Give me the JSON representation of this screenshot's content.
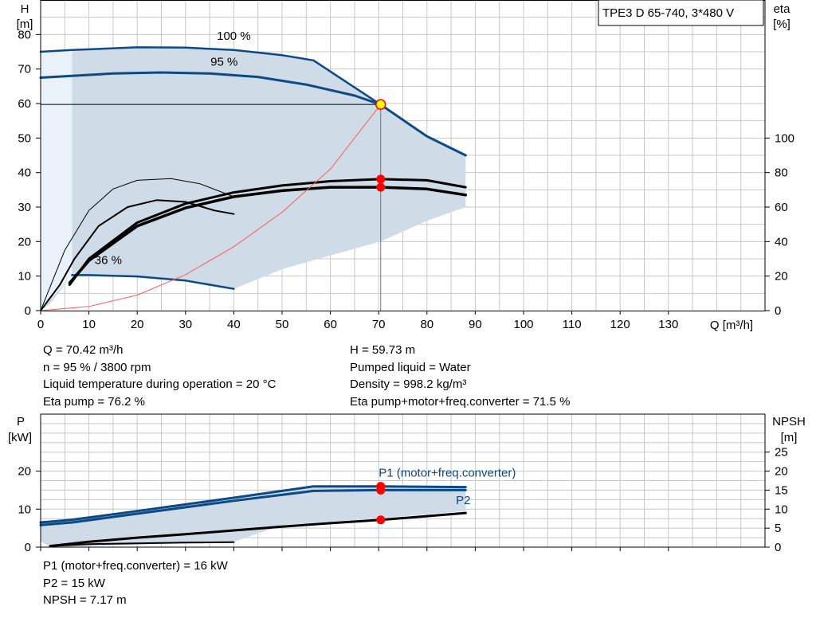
{
  "header": {
    "title": "TPE3 D 65-740, 3*480 V"
  },
  "chart_data": [
    {
      "type": "line",
      "name": "head-and-efficiency",
      "x_axis": {
        "label": "Q [m³/h]",
        "range": [
          0,
          150
        ],
        "ticks": [
          0,
          10,
          20,
          30,
          40,
          50,
          60,
          70,
          80,
          90,
          100,
          110,
          120,
          130
        ]
      },
      "y_left": {
        "label_top": "H",
        "label_unit": "[m]",
        "range": [
          0,
          90
        ],
        "ticks": [
          0,
          10,
          20,
          30,
          40,
          50,
          60,
          70,
          80
        ]
      },
      "y_right": {
        "label_top": "eta",
        "label_unit": "[%]",
        "range": [
          0,
          180
        ],
        "ticks": [
          0,
          20,
          40,
          60,
          80,
          100
        ]
      },
      "grid": true,
      "curve_labels": [
        {
          "text": "100 %",
          "at": [
            40,
            78.5
          ]
        },
        {
          "text": "95 %",
          "at": [
            38,
            71
          ]
        },
        {
          "text": "36 %",
          "at": [
            14,
            13.5
          ]
        }
      ],
      "series": [
        {
          "name": "100 %",
          "axis": "left",
          "values": [
            [
              0,
              75
            ],
            [
              6.5,
              75.5
            ],
            [
              20,
              76.3
            ],
            [
              30,
              76.2
            ],
            [
              40,
              75.5
            ],
            [
              50,
              74
            ],
            [
              56.5,
              72.5
            ],
            [
              70.4,
              59.7
            ]
          ]
        },
        {
          "name": "95 %",
          "axis": "left",
          "values": [
            [
              0,
              67.5
            ],
            [
              6.5,
              68
            ],
            [
              15,
              68.7
            ],
            [
              25,
              69
            ],
            [
              35,
              68.7
            ],
            [
              45,
              67.7
            ],
            [
              55,
              65.5
            ],
            [
              65,
              62.3
            ],
            [
              70.4,
              59.7
            ]
          ]
        },
        {
          "name": "36 %",
          "axis": "left",
          "values": [
            [
              6.5,
              10.3
            ],
            [
              10,
              10.3
            ],
            [
              20,
              9.9
            ],
            [
              30,
              8.7
            ],
            [
              40,
              6.3
            ]
          ]
        },
        {
          "axis": "left",
          "values": [
            [
              70.4,
              59.7
            ],
            [
              80,
              50.5
            ],
            [
              88,
              45
            ]
          ]
        },
        {
          "axis": "right",
          "values": [
            [
              6,
              15
            ],
            [
              10,
              30
            ],
            [
              20,
              51
            ],
            [
              30,
              62
            ],
            [
              40,
              68.5
            ],
            [
              50,
              72.5
            ],
            [
              60,
              75
            ],
            [
              70.4,
              76.2
            ],
            [
              80,
              75.5
            ],
            [
              88,
              71.5
            ]
          ]
        },
        {
          "axis": "right",
          "values": [
            [
              6,
              16
            ],
            [
              10,
              29
            ],
            [
              20,
              49
            ],
            [
              30,
              59.5
            ],
            [
              40,
              66
            ],
            [
              50,
              69.5
            ],
            [
              60,
              71.5
            ],
            [
              70.4,
              71.5
            ],
            [
              80,
              70.5
            ],
            [
              88,
              67
            ]
          ]
        },
        {
          "axis": "right",
          "values": [
            [
              0,
              0
            ],
            [
              5,
              35
            ],
            [
              10,
              58
            ],
            [
              15,
              70.5
            ],
            [
              20,
              75.5
            ],
            [
              27,
              76.5
            ],
            [
              33,
              73.5
            ],
            [
              40,
              66
            ]
          ]
        },
        {
          "axis": "right",
          "values": [
            [
              0,
              0
            ],
            [
              4,
              15
            ],
            [
              7,
              30
            ],
            [
              12,
              49
            ],
            [
              18,
              60
            ],
            [
              24,
              64
            ],
            [
              30,
              63
            ],
            [
              36,
              58
            ],
            [
              40,
              56
            ]
          ]
        },
        {
          "axis": "left",
          "values": [
            [
              0,
              0
            ],
            [
              10,
              1.2
            ],
            [
              20,
              4.5
            ],
            [
              30,
              10.4
            ],
            [
              40,
              18.5
            ],
            [
              50,
              28.5
            ],
            [
              60,
              41
            ],
            [
              70.4,
              59.7
            ]
          ]
        }
      ],
      "operating_point": {
        "Q": 70.42,
        "H": 59.73,
        "eta_points": [
          76.2,
          71.5
        ]
      }
    },
    {
      "type": "line",
      "name": "power-and-npsh",
      "x_axis": {
        "range": [
          0,
          150
        ]
      },
      "y_left": {
        "label_top": "P",
        "label_unit": "[kW]",
        "range": [
          0,
          35
        ],
        "ticks": [
          0,
          10,
          20
        ]
      },
      "y_right": {
        "label_top": "NPSH",
        "label_unit": "[m]",
        "range": [
          0,
          35
        ],
        "ticks": [
          0,
          5,
          10,
          15,
          20,
          25
        ]
      },
      "grid": true,
      "curve_labels": [
        {
          "text": "P1 (motor+freq.converter)",
          "at": [
            70,
            18.5
          ]
        },
        {
          "text": "P2",
          "at": [
            86,
            11.3
          ]
        }
      ],
      "series": [
        {
          "name": "P1 (motor+freq.converter)",
          "axis": "left",
          "values": [
            [
              0,
              6.5
            ],
            [
              6.5,
              7.2
            ],
            [
              20,
              9.5
            ],
            [
              40,
              13
            ],
            [
              56.5,
              16
            ],
            [
              70.4,
              16
            ],
            [
              88,
              15.8
            ]
          ]
        },
        {
          "name": "P2",
          "axis": "left",
          "values": [
            [
              0,
              5.8
            ],
            [
              6.5,
              6.5
            ],
            [
              20,
              8.8
            ],
            [
              40,
              12.2
            ],
            [
              56.5,
              14.8
            ],
            [
              70.4,
              15
            ],
            [
              88,
              15
            ]
          ]
        },
        {
          "name": "NPSH",
          "axis": "left",
          "values": [
            [
              2,
              0.3
            ],
            [
              10,
              1.4
            ],
            [
              20,
              2.5
            ],
            [
              30,
              3.4
            ],
            [
              40,
              4.4
            ],
            [
              50,
              5.4
            ],
            [
              60,
              6.3
            ],
            [
              70.4,
              7.17
            ],
            [
              88,
              9
            ]
          ]
        },
        {
          "axis": "left",
          "values": [
            [
              2,
              0.3
            ],
            [
              10,
              0.8
            ],
            [
              20,
              1.0
            ],
            [
              30,
              1.2
            ],
            [
              40,
              1.3
            ]
          ]
        }
      ],
      "operating_point": {
        "P1": 16,
        "P2": 15,
        "NPSH": 7.17
      }
    }
  ],
  "readouts_main": {
    "left": [
      "Q = 70.42 m³/h",
      "n = 95 % / 3800 rpm",
      "Liquid temperature during operation = 20 °C",
      "Eta pump = 76.2 %"
    ],
    "right": [
      "H = 59.73 m",
      "Pumped liquid = Water",
      "Density = 998.2 kg/m³",
      "Eta pump+motor+freq.converter = 71.5 %"
    ]
  },
  "readouts_power": [
    "P1 (motor+freq.converter) = 16 kW",
    "P2 = 15 kW",
    "NPSH = 7.17 m"
  ],
  "colors": {
    "curve": "#0b4a86",
    "fill": "#cfdbe6",
    "fill_light": "#e9f2fa",
    "point": "#ff0000",
    "marker": "#ffff00",
    "eta_line": "#000000",
    "system_curve": "#ff5a5a",
    "grid": "#c8c8c8"
  }
}
